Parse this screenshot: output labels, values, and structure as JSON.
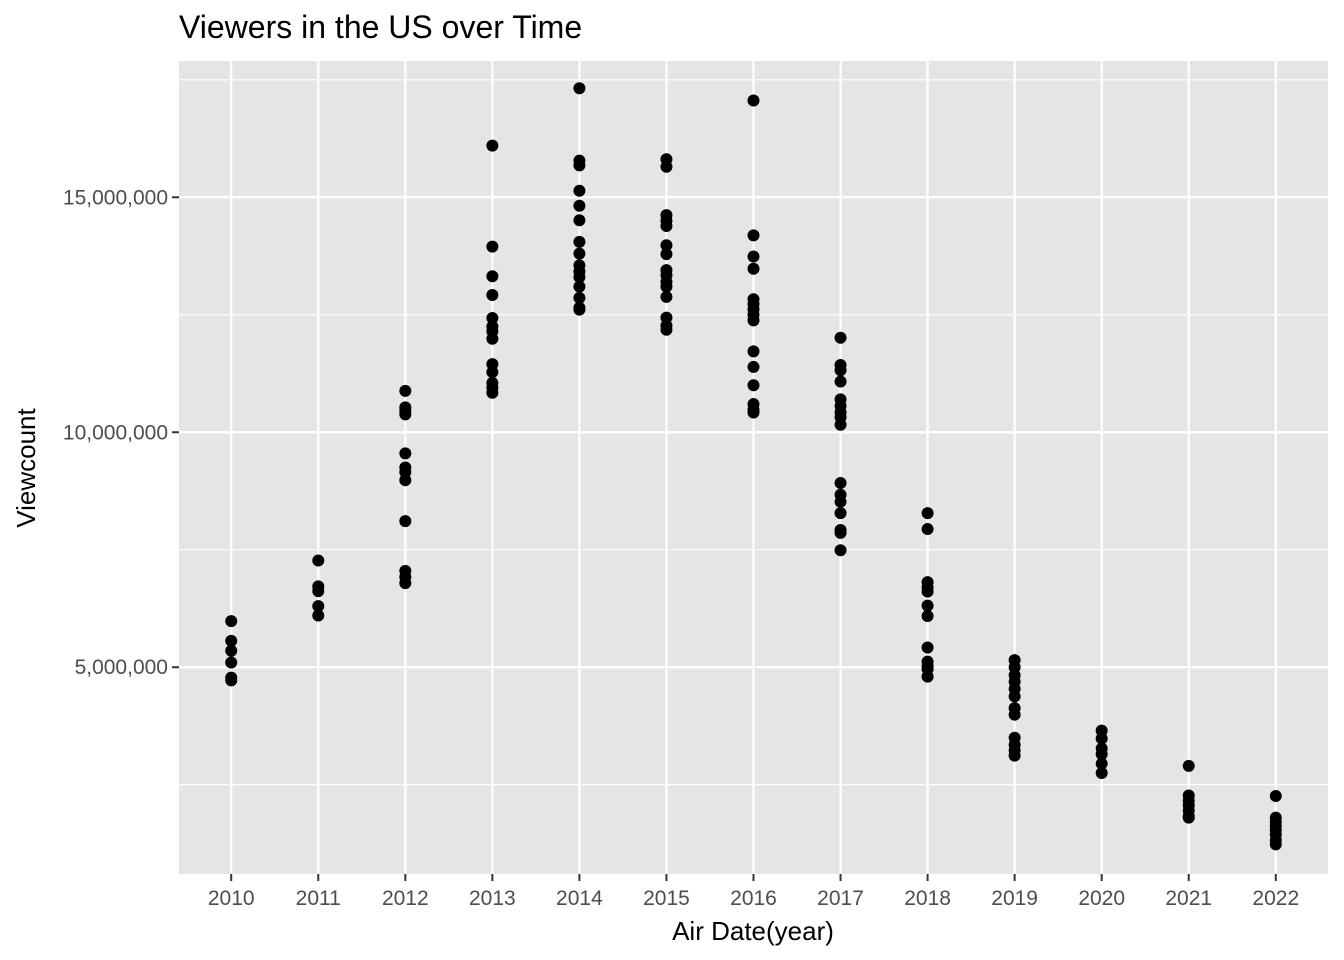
{
  "chart_data": {
    "type": "scatter",
    "title": "Viewers in the US over Time",
    "xlabel": "Air Date(year)",
    "ylabel": "Viewcount",
    "x_ticks": [
      2010,
      2011,
      2012,
      2013,
      2014,
      2015,
      2016,
      2017,
      2018,
      2019,
      2020,
      2021,
      2022
    ],
    "y_ticks": [
      5000000,
      10000000,
      15000000
    ],
    "y_tick_labels": [
      "5,000,000",
      "10,000,000",
      "15,000,000"
    ],
    "xlim": [
      2009.4,
      2022.6
    ],
    "ylim": [
      600000,
      17900000
    ],
    "grid": true,
    "point_color": "#000000",
    "panel_color": "#e5e5e5",
    "points": [
      {
        "year": 2010,
        "values": [
          5980000,
          5560000,
          5350000,
          5100000,
          4780000,
          4720000
        ]
      },
      {
        "year": 2011,
        "values": [
          7270000,
          6720000,
          6620000,
          6300000,
          6100000
        ]
      },
      {
        "year": 2012,
        "values": [
          10880000,
          10530000,
          10450000,
          10380000,
          9550000,
          9250000,
          9150000,
          8980000,
          8110000,
          7050000,
          6920000,
          6790000
        ]
      },
      {
        "year": 2013,
        "values": [
          16100000,
          13950000,
          13320000,
          12920000,
          12430000,
          12250000,
          12150000,
          11990000,
          11450000,
          11280000,
          11050000,
          10950000,
          10840000
        ]
      },
      {
        "year": 2014,
        "values": [
          17320000,
          15780000,
          15680000,
          15140000,
          14820000,
          14510000,
          14050000,
          13800000,
          13550000,
          13420000,
          13300000,
          13100000,
          12860000,
          12650000,
          12610000
        ]
      },
      {
        "year": 2015,
        "values": [
          15810000,
          15650000,
          14620000,
          14500000,
          14390000,
          13980000,
          13790000,
          13450000,
          13340000,
          13200000,
          13100000,
          12880000,
          12440000,
          12270000,
          12180000
        ]
      },
      {
        "year": 2016,
        "values": [
          17060000,
          14190000,
          13740000,
          13480000,
          12830000,
          12730000,
          12620000,
          12500000,
          12380000,
          11720000,
          11390000,
          11000000,
          10600000,
          10480000,
          10420000
        ]
      },
      {
        "year": 2017,
        "values": [
          12010000,
          11430000,
          11320000,
          11080000,
          10700000,
          10560000,
          10420000,
          10320000,
          10160000,
          8920000,
          8670000,
          8520000,
          8280000,
          7920000,
          7860000,
          7490000
        ]
      },
      {
        "year": 2018,
        "values": [
          8280000,
          7940000,
          6810000,
          6700000,
          6610000,
          6310000,
          6090000,
          5420000,
          5120000,
          5020000,
          4960000,
          4800000
        ]
      },
      {
        "year": 2019,
        "values": [
          5150000,
          5000000,
          4830000,
          4690000,
          4540000,
          4380000,
          4130000,
          3990000,
          3500000,
          3350000,
          3230000,
          3120000
        ]
      },
      {
        "year": 2020,
        "values": [
          3650000,
          3480000,
          3270000,
          3150000,
          2950000,
          2750000
        ]
      },
      {
        "year": 2021,
        "values": [
          2900000,
          2270000,
          2160000,
          2060000,
          1950000,
          1830000,
          1800000
        ]
      },
      {
        "year": 2022,
        "values": [
          2260000,
          1800000,
          1710000,
          1620000,
          1530000,
          1440000,
          1320000,
          1230000
        ]
      }
    ]
  }
}
